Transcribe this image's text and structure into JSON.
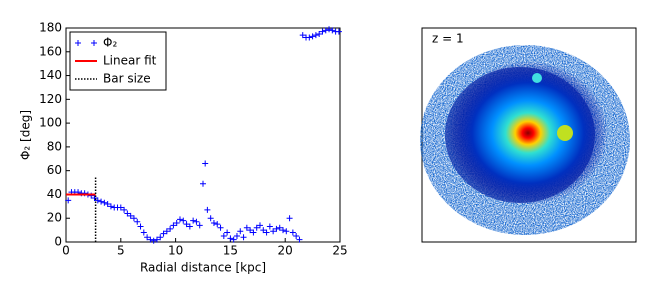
{
  "chart_data": {
    "type": "scatter",
    "xlabel": "Radial distance [kpc]",
    "ylabel": "Φ₂ [deg]",
    "xlim": [
      0,
      25
    ],
    "ylim": [
      0,
      180
    ],
    "xticks": [
      0,
      5,
      10,
      15,
      20,
      25
    ],
    "yticks": [
      0,
      20,
      40,
      60,
      80,
      100,
      120,
      140,
      160,
      180
    ],
    "legend": "upper left",
    "series": [
      {
        "name": "Φ₂",
        "color": "#0000ff",
        "marker": "+",
        "x": [
          0.2,
          0.5,
          0.8,
          1.1,
          1.4,
          1.7,
          2.0,
          2.3,
          2.6,
          2.9,
          3.2,
          3.5,
          3.8,
          4.1,
          4.4,
          4.7,
          5.0,
          5.3,
          5.6,
          5.9,
          6.2,
          6.5,
          6.8,
          7.1,
          7.4,
          7.7,
          8.0,
          8.3,
          8.6,
          8.9,
          9.2,
          9.5,
          9.8,
          10.1,
          10.4,
          10.7,
          11.0,
          11.3,
          11.6,
          11.9,
          12.2,
          12.5,
          12.7,
          12.9,
          13.2,
          13.5,
          13.8,
          14.1,
          14.4,
          14.7,
          15.0,
          15.3,
          15.6,
          15.9,
          16.2,
          16.5,
          16.8,
          17.1,
          17.4,
          17.7,
          18.0,
          18.3,
          18.6,
          18.9,
          19.2,
          19.5,
          19.8,
          20.1,
          20.4,
          20.7,
          21.0,
          21.3,
          21.6,
          21.9,
          22.2,
          22.5,
          22.8,
          23.1,
          23.4,
          23.7,
          24.0,
          24.3,
          24.6,
          24.9
        ],
        "values": [
          35,
          42,
          42,
          42,
          41,
          41,
          40,
          39,
          37,
          35,
          34,
          33,
          32,
          30,
          29,
          29,
          29,
          27,
          24,
          22,
          20,
          17,
          13,
          8,
          4,
          2,
          1,
          2,
          4,
          7,
          9,
          11,
          14,
          16,
          19,
          18,
          15,
          13,
          18,
          17,
          14,
          49,
          66,
          27,
          20,
          16,
          15,
          12,
          5,
          8,
          3,
          2,
          5,
          9,
          4,
          12,
          10,
          8,
          12,
          14,
          10,
          8,
          13,
          9,
          11,
          12,
          10,
          9,
          20,
          8,
          5,
          2,
          174,
          172,
          172,
          173,
          174,
          175,
          177,
          178,
          179,
          178,
          177,
          177
        ]
      },
      {
        "name": "Linear fit",
        "color": "#ff0000",
        "x": [
          0,
          2.7
        ],
        "values": [
          40,
          40
        ]
      },
      {
        "name": "Bar size",
        "color": "#000000",
        "dash": "dotted",
        "x": [
          2.7,
          2.7
        ],
        "values": [
          0,
          55
        ]
      }
    ]
  },
  "image": {
    "label": "z = 1"
  }
}
